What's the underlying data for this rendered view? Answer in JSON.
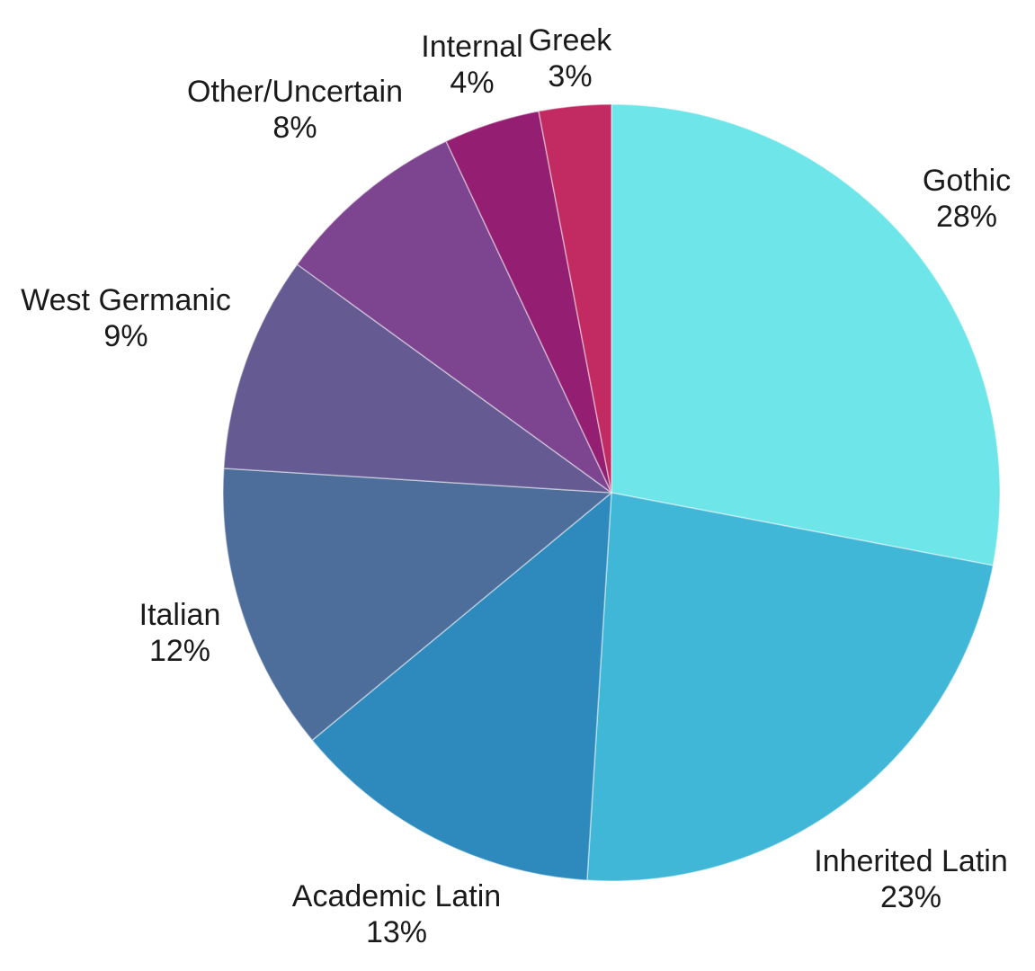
{
  "chart_data": {
    "type": "pie",
    "title": "",
    "legend": "none",
    "segments": [
      {
        "label": "Gothic",
        "value": 28,
        "display": "28%",
        "color": "#6ee5e8"
      },
      {
        "label": "Inherited Latin",
        "value": 23,
        "display": "23%",
        "color": "#41b7d8"
      },
      {
        "label": "Academic Latin",
        "value": 13,
        "display": "13%",
        "color": "#2e8abc"
      },
      {
        "label": "Italian",
        "value": 12,
        "display": "12%",
        "color": "#4d6d9b"
      },
      {
        "label": "West Germanic",
        "value": 9,
        "display": "9%",
        "color": "#655a91"
      },
      {
        "label": "Other/Uncertain",
        "value": 8,
        "display": "8%",
        "color": "#7d4490"
      },
      {
        "label": "Internal",
        "value": 4,
        "display": "4%",
        "color": "#941f72"
      },
      {
        "label": "Greek",
        "value": 3,
        "display": "3%",
        "color": "#c22a62"
      }
    ],
    "layout": {
      "start_angle_deg": 0,
      "direction": "clockwise",
      "center": [
        680,
        548
      ],
      "radius": 432,
      "label_radii": [
        513,
        544,
        526,
        505,
        574,
        553,
        500,
        485
      ],
      "label_style": "outside, two lines: name over percent",
      "slice_border_color": "rgba(255,255,255,0.45)",
      "slice_border_width": 1.5,
      "text_color": "#1a1a1a",
      "background_color": "#ffffff"
    }
  }
}
